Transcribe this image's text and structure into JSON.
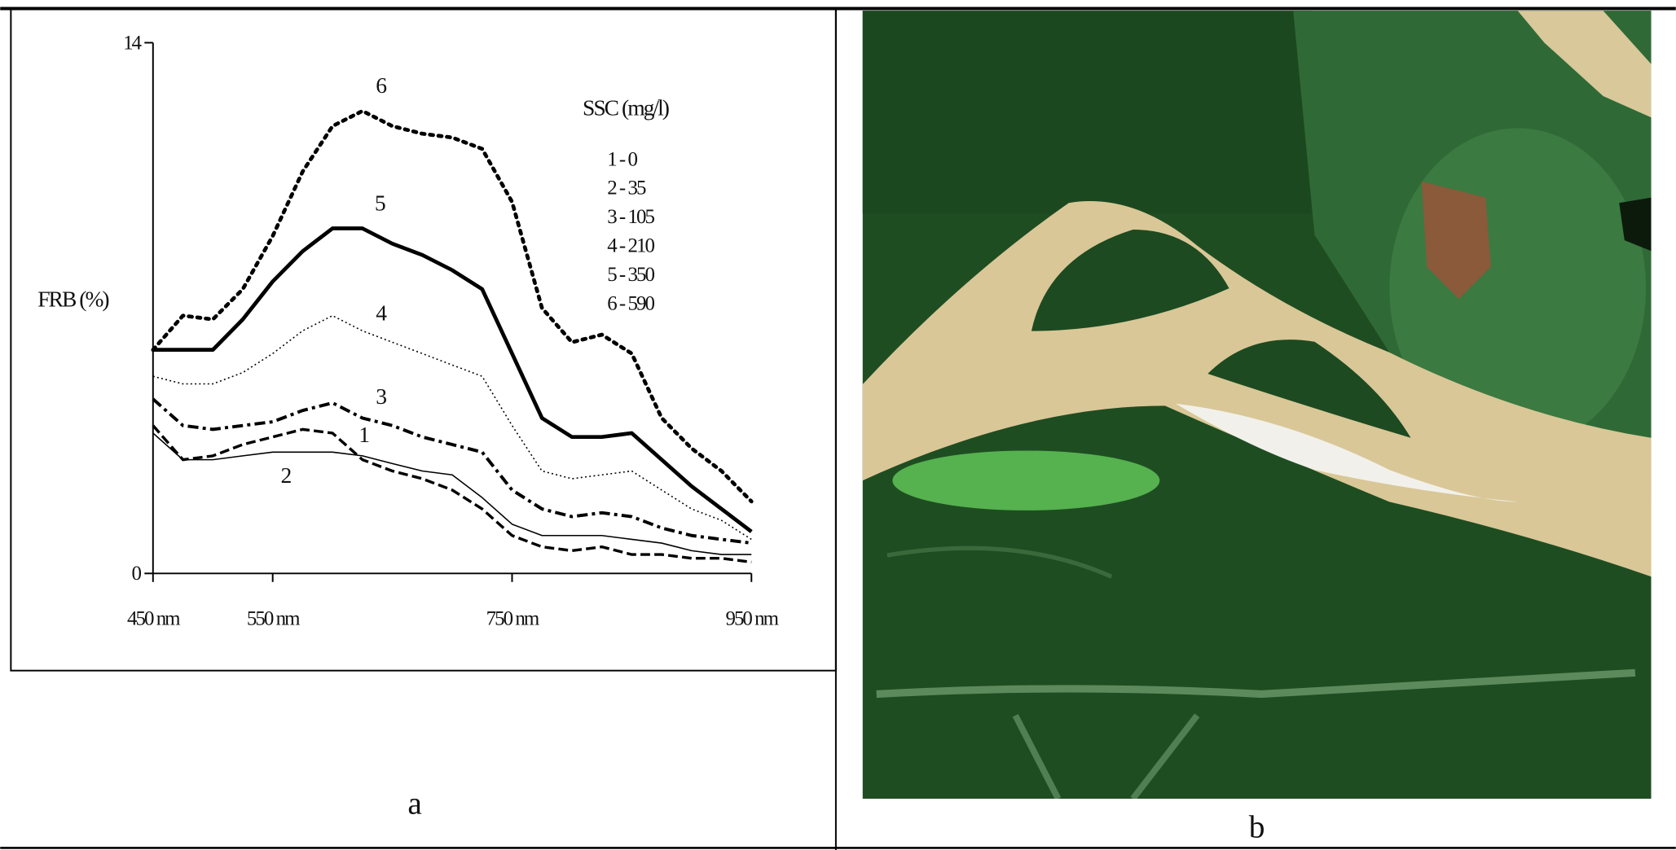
{
  "chart_data": {
    "type": "line",
    "y_label": "FRB (%)",
    "legend_title": "SSC (mg/l)",
    "x": [
      450,
      475,
      500,
      525,
      550,
      575,
      600,
      625,
      650,
      675,
      700,
      725,
      750,
      775,
      800,
      825,
      850,
      875,
      900,
      925,
      950
    ],
    "xlim": [
      450,
      950
    ],
    "xticks": [
      {
        "value": 450,
        "label": "450 nm"
      },
      {
        "value": 550,
        "label": "550 nm"
      },
      {
        "value": 750,
        "label": "750 nm"
      },
      {
        "value": 950,
        "label": "950 nm"
      }
    ],
    "ylim": [
      0,
      14
    ],
    "yticks": [
      0,
      14
    ],
    "series": [
      {
        "name": "1 - 0",
        "label": "1",
        "color": "#000000",
        "style": "dashed",
        "values": [
          3.9,
          3.0,
          3.1,
          3.4,
          3.6,
          3.8,
          3.7,
          3.0,
          2.7,
          2.5,
          2.2,
          1.7,
          1.0,
          0.7,
          0.6,
          0.7,
          0.5,
          0.5,
          0.4,
          0.4,
          0.3
        ]
      },
      {
        "name": "2 - 35",
        "label": "2",
        "color": "#000000",
        "style": "thin",
        "values": [
          3.7,
          3.0,
          3.0,
          3.1,
          3.2,
          3.2,
          3.2,
          3.1,
          2.9,
          2.7,
          2.6,
          2.0,
          1.3,
          1.0,
          1.0,
          1.0,
          0.9,
          0.8,
          0.6,
          0.5,
          0.5
        ]
      },
      {
        "name": "3 - 105",
        "label": "3",
        "color": "#000000",
        "style": "dash-dot",
        "values": [
          4.6,
          3.9,
          3.8,
          3.9,
          4.0,
          4.3,
          4.5,
          4.1,
          3.9,
          3.6,
          3.4,
          3.2,
          2.2,
          1.7,
          1.5,
          1.6,
          1.5,
          1.2,
          1.0,
          0.9,
          0.8
        ]
      },
      {
        "name": "4 - 210",
        "label": "4",
        "color": "#000000",
        "style": "fine-dotted",
        "values": [
          5.2,
          5.0,
          5.0,
          5.3,
          5.8,
          6.4,
          6.8,
          6.4,
          6.1,
          5.8,
          5.5,
          5.2,
          3.9,
          2.7,
          2.5,
          2.6,
          2.7,
          2.2,
          1.7,
          1.4,
          0.9
        ]
      },
      {
        "name": "5 - 350",
        "label": "5",
        "color": "#000000",
        "style": "thick",
        "values": [
          5.9,
          5.9,
          5.9,
          6.7,
          7.7,
          8.5,
          9.1,
          9.1,
          8.7,
          8.4,
          8.0,
          7.5,
          5.8,
          4.1,
          3.6,
          3.6,
          3.7,
          3.0,
          2.3,
          1.7,
          1.1
        ]
      },
      {
        "name": "6 - 590",
        "label": "6",
        "color": "#000000",
        "style": "bold-dotted",
        "values": [
          5.9,
          6.8,
          6.7,
          7.5,
          8.9,
          10.6,
          11.8,
          12.2,
          11.8,
          11.6,
          11.5,
          11.2,
          9.8,
          7.0,
          6.1,
          6.3,
          5.8,
          4.1,
          3.3,
          2.7,
          1.9
        ]
      }
    ]
  },
  "captions": [
    "a",
    "b"
  ]
}
